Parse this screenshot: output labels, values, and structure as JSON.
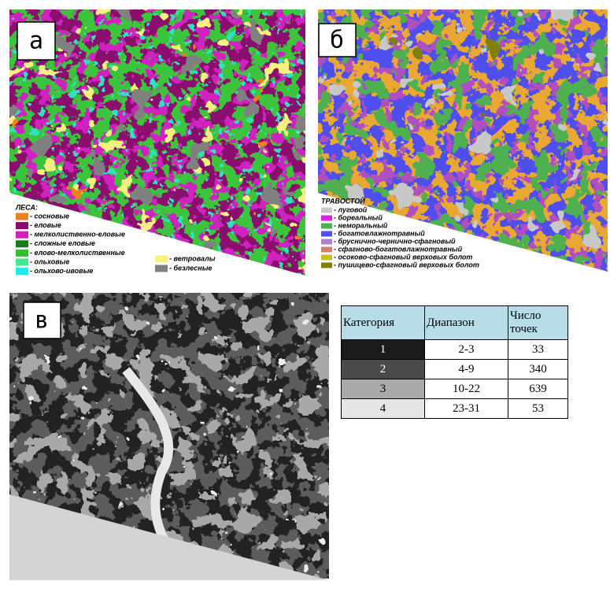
{
  "panels": [
    {
      "label": "а",
      "legend": {
        "title": "ЛЕСА:",
        "items": [
          {
            "label": "- сосновые",
            "color": "#f07f1e"
          },
          {
            "label": "- еловые",
            "color": "#8b0a6e"
          },
          {
            "label": "- мелколиственно-еловые",
            "color": "#d020c0"
          },
          {
            "label": "- сложные еловые",
            "color": "#1a7a1a"
          },
          {
            "label": "- елово-мелколиственные",
            "color": "#30c030"
          },
          {
            "label": "- ольховые",
            "color": "#40e890"
          },
          {
            "label": "- ольхово-ивовые",
            "color": "#20e8e8"
          },
          {
            "label": "- ветровалы",
            "color": "#f8f080"
          },
          {
            "label": "- безлесные",
            "color": "#808080"
          }
        ]
      }
    },
    {
      "label": "б",
      "legend": {
        "title": "ТРАВОСТОЙ",
        "items": [
          {
            "label": "- луговой",
            "color": "#c8c8c8"
          },
          {
            "label": "- бореальный",
            "color": "#e020e0"
          },
          {
            "label": "- неморальный",
            "color": "#50b050"
          },
          {
            "label": "- богатовлажнотравный",
            "color": "#5050f0"
          },
          {
            "label": "- бруснично-чернично-сфагновый",
            "color": "#b080d0"
          },
          {
            "label": "- сфагново-богатовлажнотравный",
            "color": "#d08070"
          },
          {
            "label": "- осоково-сфагновый верховых болот",
            "color": "#c8c020"
          },
          {
            "label": "- пушицево-сфагновый верховых болот",
            "color": "#808000"
          }
        ]
      }
    },
    {
      "label": "в"
    }
  ],
  "table": {
    "header": [
      "Категория",
      "Диапазон",
      "Число точек"
    ],
    "rows": [
      [
        1,
        "2-3",
        33
      ],
      [
        2,
        "4-9",
        340
      ],
      [
        3,
        "10-22",
        639
      ],
      [
        4,
        "23-31",
        53
      ]
    ],
    "row_colors": [
      "#1a1a1a",
      "#4a4a4a",
      "#aaaaaa",
      "#e6e6e6"
    ],
    "row_text_colors": [
      "#ffffff",
      "#ffffff",
      "#000000",
      "#000000"
    ]
  }
}
